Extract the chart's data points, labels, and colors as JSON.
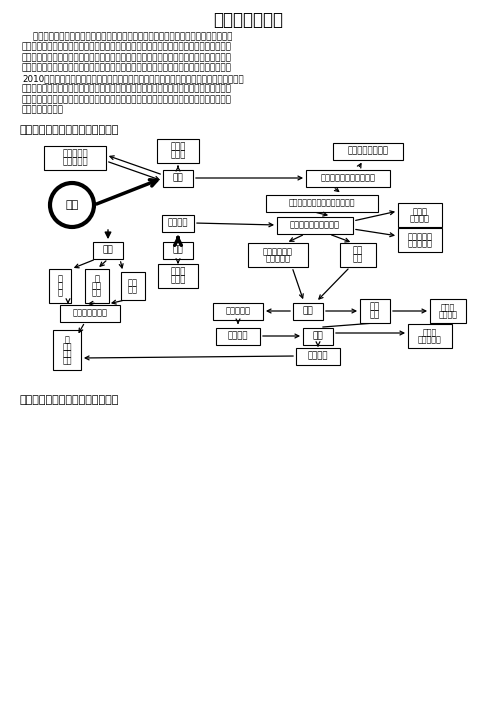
{
  "title": "专题：地理计算",
  "intro_lines": [
    "    地理学科中有关计算的内容具有很强的实用性，也是地理学的重点和难点知识，它是地",
    "理学科高考考试说明中十点能力要求之一，也是高考地理考查的基本技能之一。对这部分内",
    "容的考查，可以反映出考生的地理素质水平和学习潜质，也能很好地体现出地理高考试题能",
    "力立意的基本原则。因而，这部分内容一直是高考地理命题和文综命题的热点和焦点之一。",
    "2010年高考中全国、北京、天津、新课程等综合卷及广东卷、江苏等地理单科试卷都涉及了",
    "分值不等的地理计算类题目，从而使其成为了全国及各地高考地理试题的一大亮点。但部分",
    "考生由于计算技能、技巧不过关，往往降低了该类题目的得分率，因此高考复习中，我们必",
    "须引起足够重视。"
  ],
  "section1_title": "一、各种地理计算之间的知识网络",
  "section2_title": "二、各种地理计算的基本原理精析",
  "bg_color": "#ffffff"
}
